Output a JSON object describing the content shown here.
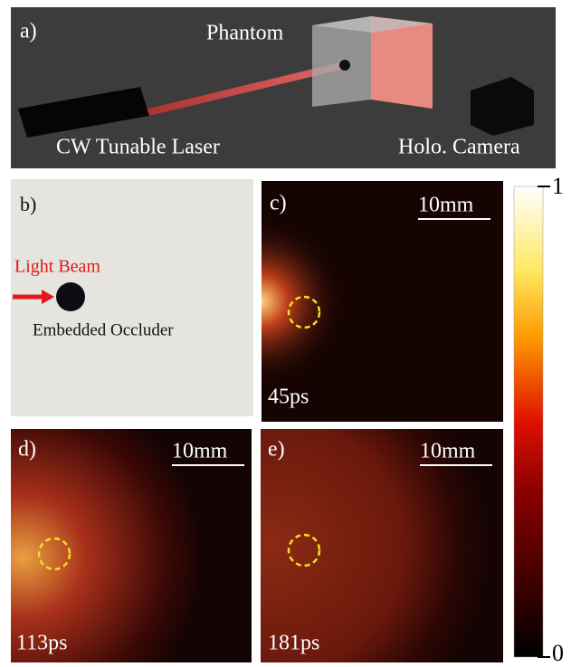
{
  "panels": {
    "a": {
      "label": "a)",
      "phantom": "Phantom",
      "laser": "CW Tunable Laser",
      "camera": "Holo. Camera"
    },
    "b": {
      "label": "b)",
      "beam": "Light Beam",
      "occluder": "Embedded Occluder"
    },
    "c": {
      "label": "c)",
      "scale": "10mm",
      "time": "45ps"
    },
    "d": {
      "label": "d)",
      "scale": "10mm",
      "time": "113ps"
    },
    "e": {
      "label": "e)",
      "scale": "10mm",
      "time": "181ps"
    }
  },
  "colorbar": {
    "max": 1,
    "min": 0
  }
}
